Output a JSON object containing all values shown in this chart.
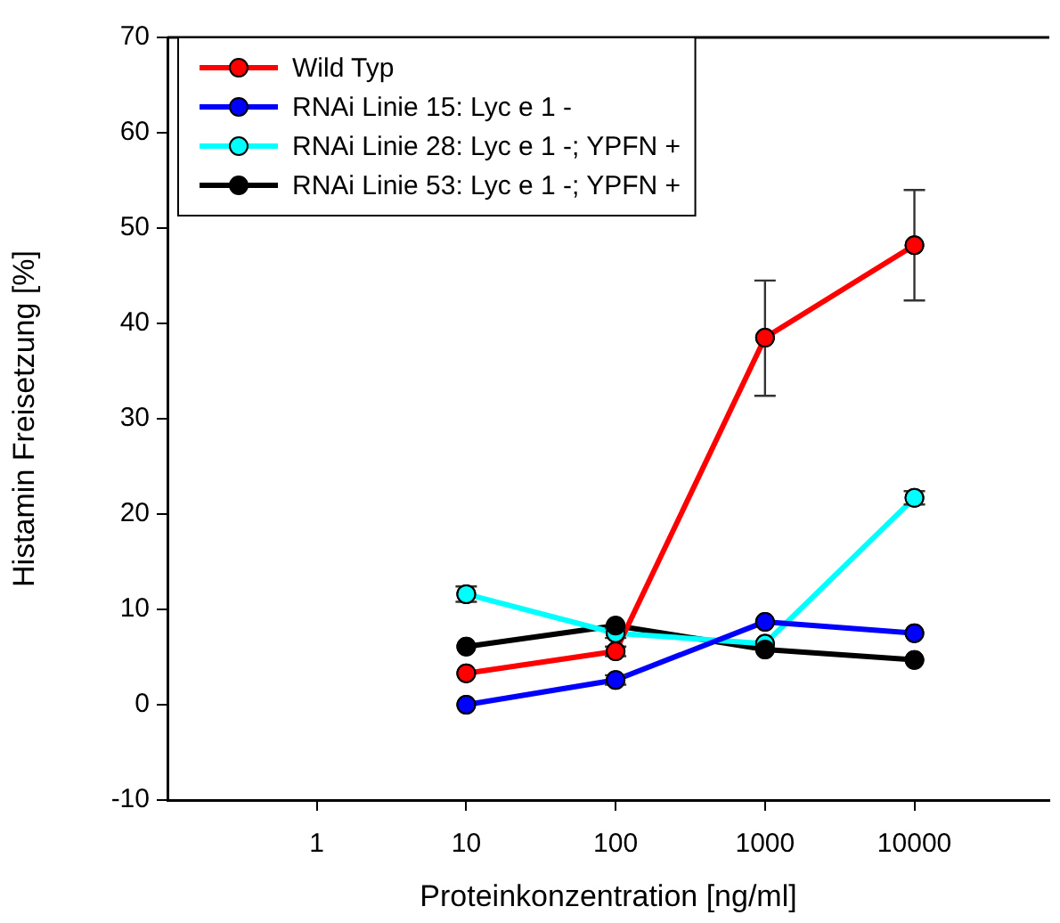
{
  "chart_data": {
    "type": "line",
    "xlabel": "Proteinkonzentration [ng/ml]",
    "ylabel": "Histamin Freisetzung [%]",
    "x": [
      10,
      100,
      1000,
      10000
    ],
    "series": [
      {
        "name": "Wild Typ",
        "color": "#ff0000",
        "values": [
          3.3,
          5.6,
          38.5,
          48.2
        ],
        "errors": [
          null,
          0.5,
          [
            32.4,
            44.5
          ],
          [
            42.4,
            54.0
          ]
        ]
      },
      {
        "name": "RNAi Linie 15: Lyc e 1 -",
        "color": "#0000ff",
        "values": [
          0,
          2.6,
          8.7,
          7.5
        ],
        "errors": [
          null,
          0.5,
          null,
          null
        ]
      },
      {
        "name": "RNAi Linie 28: Lyc e 1 -; YPFN +",
        "color": "#00ffff",
        "values": [
          11.6,
          7.5,
          6.4,
          21.7
        ],
        "errors": [
          0.8,
          0.5,
          null,
          0.7
        ]
      },
      {
        "name": "RNAi Linie 53: Lyc e 1 -; YPFN +",
        "color": "#000000",
        "values": [
          6.1,
          8.3,
          5.8,
          4.7
        ]
      }
    ],
    "log": "x",
    "xlim": [
      0.1,
      80000
    ],
    "xticks": [
      1,
      10,
      100,
      1000,
      10000
    ],
    "ylim": [
      -10,
      70
    ],
    "yticks": [
      -10,
      0,
      10,
      20,
      30,
      40,
      50,
      60,
      70
    ],
    "grid": false,
    "legend": "top left",
    "marker": "circle",
    "line_style": "solid"
  }
}
